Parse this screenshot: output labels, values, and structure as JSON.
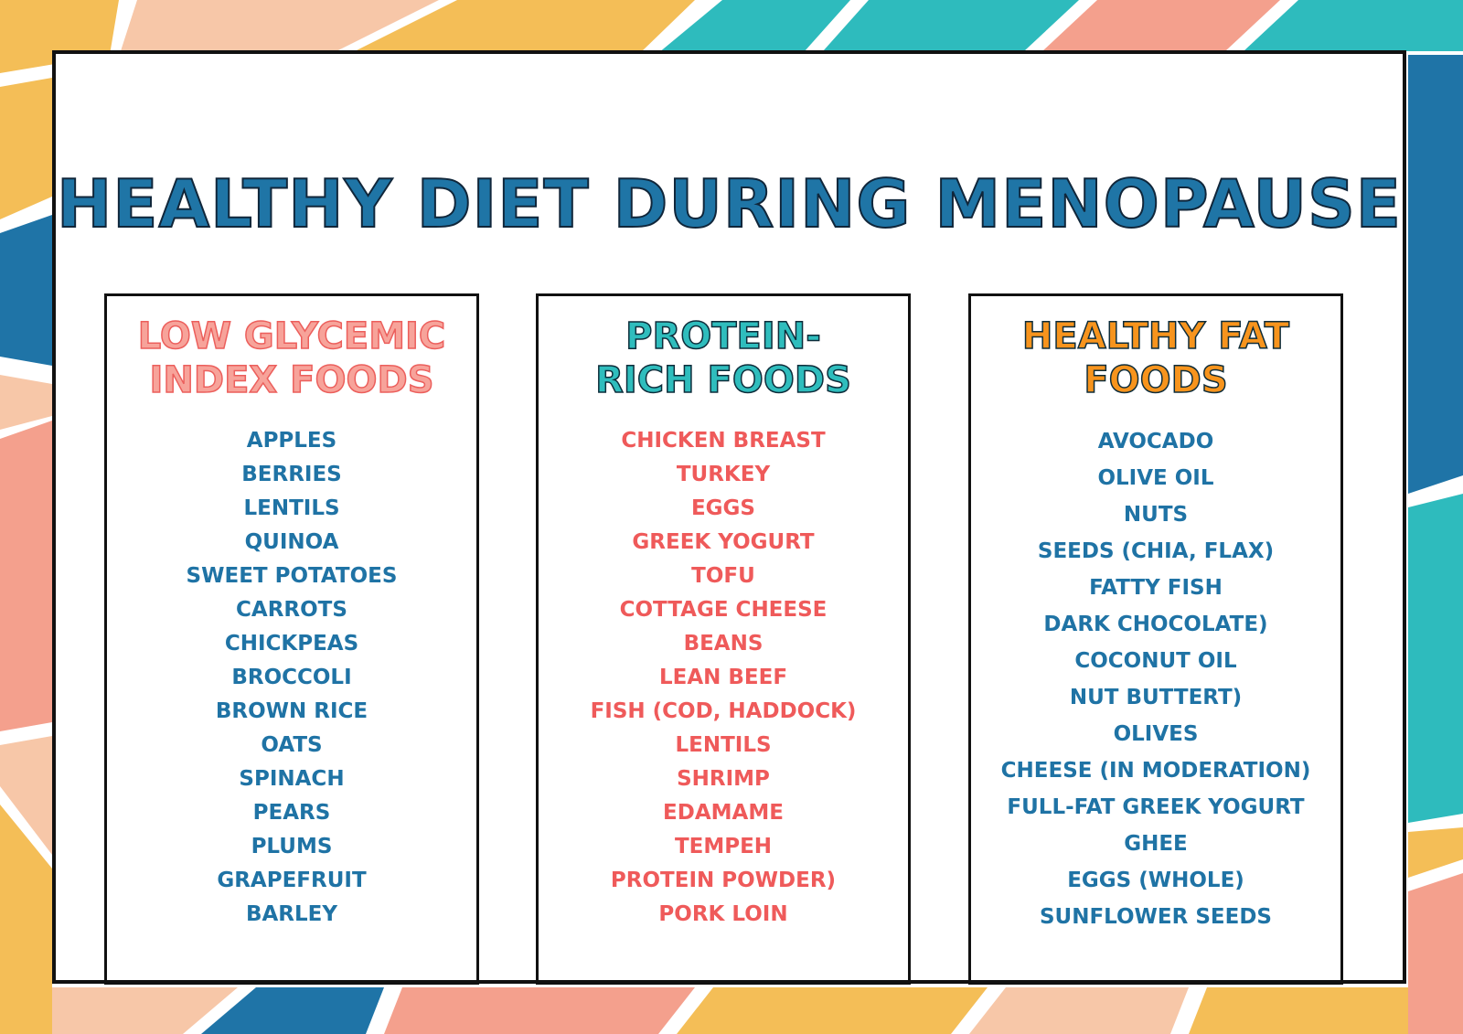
{
  "colors": {
    "background_yellow": "#f4be57",
    "background_teal": "#2ebbbd",
    "background_salmon": "#f4a08d",
    "background_peach": "#f7c7a8",
    "background_blue": "#1f74a7",
    "title_blue": "#1f75a6",
    "item_blue": "#1f73a5",
    "item_red": "#ef5a5a",
    "heading_pink": "#f7a39a",
    "heading_teal": "#2fbdbd",
    "heading_orange": "#f7941d"
  },
  "title": "HEALTHY DIET DURING MENOPAUSE",
  "columns": [
    {
      "heading": "LOW GLYCEMIC\nINDEX FOODS",
      "items": [
        "APPLES",
        "BERRIES",
        "LENTILS",
        "QUINOA",
        "SWEET POTATOES",
        "CARROTS",
        "CHICKPEAS",
        "BROCCOLI",
        "BROWN RICE",
        "OATS",
        "SPINACH",
        "PEARS",
        "PLUMS",
        "GRAPEFRUIT",
        "BARLEY"
      ]
    },
    {
      "heading": "PROTEIN-\nRICH FOODS",
      "items": [
        "CHICKEN BREAST",
        "TURKEY",
        "EGGS",
        "GREEK YOGURT",
        "TOFU",
        "COTTAGE CHEESE",
        "BEANS",
        "LEAN BEEF",
        "FISH (COD, HADDOCK)",
        "LENTILS",
        "SHRIMP",
        "EDAMAME",
        "TEMPEH",
        "PROTEIN POWDER)",
        "PORK LOIN"
      ]
    },
    {
      "heading": "HEALTHY FAT\nFOODS",
      "items": [
        "AVOCADO",
        "OLIVE OIL",
        "NUTS",
        "SEEDS (CHIA, FLAX)",
        "FATTY FISH",
        "DARK CHOCOLATE)",
        "COCONUT OIL",
        "NUT BUTTERT)",
        "OLIVES",
        "CHEESE (IN MODERATION)",
        "FULL-FAT GREEK YOGURT",
        "GHEE",
        "EGGS (WHOLE)",
        "SUNFLOWER SEEDS"
      ]
    }
  ]
}
